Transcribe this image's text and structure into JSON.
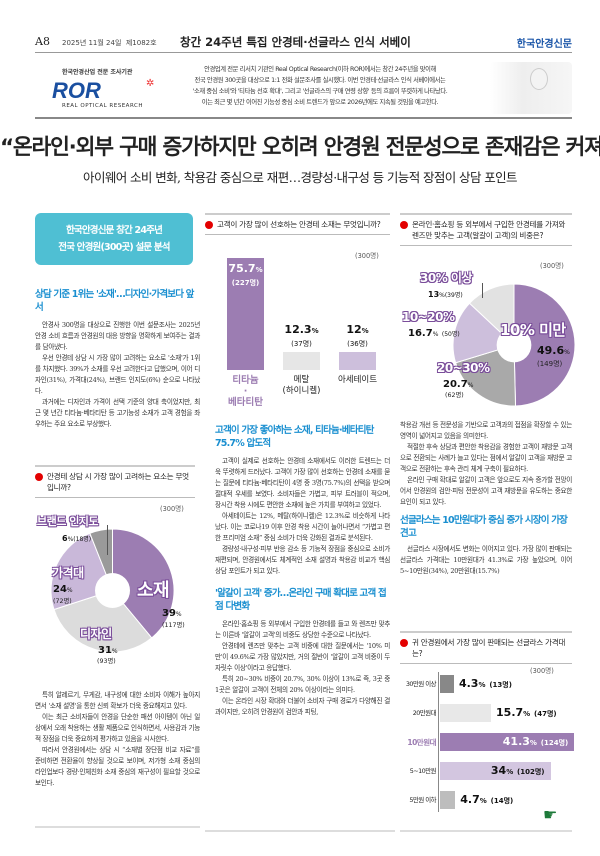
{
  "header": {
    "page": "A8",
    "date": "2025년 11월 24일",
    "issue": "제1082호",
    "section_title": "창간 24주년 특집 안경테·선글라스 인식 서베이",
    "brand": "한국안경신문"
  },
  "ror": {
    "sub": "한국안경산업 전문 조사기관",
    "logo": "ROR",
    "name": "REAL OPTICAL RESEARCH"
  },
  "intro": [
    "안경업계 전문 리서치 기관인 Real Optical Research(이하 ROR)에서는 창간 24주년을 맞이해",
    "전국 안경원 300곳을 대상으로 1:1 전화 설문조사를 실시했다. 이번 안경테·선글라스 인식 서베이에서는",
    "'소재 중심 소비'와 '티타늄 선호 확대', 그리고 '선글라스의 구매 연령 상향' 등의 흐름이 뚜렷하게 나타났다.",
    "이는 최근 몇 년간 이어진 기능성 중심 소비 트렌드가 앞으로 2026년에도 지속될 것임을 예고한다."
  ],
  "headline": "“온라인·외부 구매 증가하지만 오히려 안경원 전문성으로 존재감은 커져”",
  "subhead": "아이웨어 소비 변화, 착용감 중심으로 재편…경량성·내구성 등 기능적 장점이 상담 포인트",
  "callout": [
    "한국안경신문 창간 24주년",
    "전국 안경원(300곳) 설문 분석"
  ],
  "sections": [
    {
      "heading": "상담 기준 1위는 '소재'…디자인·가격보다 앞서",
      "paragraphs": [
        "안경사 300명을 대상으로 진행한 이번 설문조사는 2025년 안경 소비 흐름과 안경원의 대응 방향을 명확하게 보여주는 결과를 담아냈다.",
        "우선 안경테 상담 시 가장 많이 고려하는 요소로 '소재'가 1위를 차지했다. 39%가 소재를 우선 고려한다고 답했으며, 이어 디자인(31%), 가격대(24%), 브랜드 인지도(6%) 순으로 나타났다.",
        "과거에는 디자인과 가격이 선택 기준의 양대 축이었지만, 최근 몇 년간 티타늄·베타티탄 등 고기능성 소재가 고객 경험을 좌우하는 주요 요소로 부상했다."
      ]
    },
    {
      "paragraphs": [
        "특히 알레르기, 무게감, 내구성에 대한 소비자 이해가 높아지면서 '소재 설명'을 통한 신뢰 확보가 더욱 중요해지고 있다.",
        "이는 최근 소비자들이 안경을 단순한 패션 아이템이 아닌 일상에서 오래 착용하는 생활 제품으로 인식하면서, 사용감과 기능적 장점을 더욱 중요하게 평가하고 있음을 시사한다.",
        "따라서 안경원에서는 상담 시 “소재별 장단점 비교 자료”를 준비하면 전환율이 향상될 것으로 보이며, 저가형 소재 중심의 라인업보다 경량·인체친화 소재 중심의 재구성이 필요할 것으로 보인다."
      ]
    },
    {
      "heading": "고객이 가장 좋아하는 소재, 티타늄·베타티탄 75.7% 압도적",
      "paragraphs": [
        "고객이 실제로 선호하는 안경테 소재에서도 이러한 트렌드는 더욱 뚜렷하게 드러났다. 고객이 가장 많이 선호하는 안경테 소재를 묻는 질문에 티타늄·베타티탄이 4명 중 3명(75.7%)의 선택을 받으며 절대적 우세를 보였다. 소비자들은 가볍고, 피부 트러블이 적으며, 장시간 착용 시에도 편안한 소재에 높은 가치를 부여하고 있었다.",
        "아세테이트는 12%, 메탈(하이니켈)은 12.3%로 비슷하게 나타났다. 이는 코로나19 이후 안경 착용 시간이 늘어나면서 “가볍고 편한 프리미엄 소재” 중심 소비가 더욱 강화된 결과로 분석된다.",
        "경량성·내구성·피부 반응 감소 등 기능적 장점을 중심으로 소비가 재편되며, 안경원에서도 체계적인 소재 설명과 착용감 비교가 핵심 상담 포인트가 되고 있다."
      ]
    },
    {
      "heading": "'알갈이 고객' 증가…온라인 구매 확대로 고객 접점 다변화",
      "paragraphs": [
        "온라인·홈쇼핑 등 외부에서 구입한 안경테를 들고 와 렌즈만 맞추는 이른바 '알갈이 고객'의 비중도 상당한 수준으로 나타났다.",
        "안경테에 렌즈만 맞추는 고객 비중에 대한 질문에서는 '10% 미만'이 49.6%로 가장 많았지만, 거의 절반이 '알갈이 고객 비중이 두 자릿수 이상'이라고 응답했다.",
        "특히 20~30% 비중이 20.7%, 30% 이상이 13%로 즉, 3곳 중 1곳은 알갈이 고객이 전체의 20% 이상이라는 의미다.",
        "이는 온라인 시장 확대와 더불어 소비자 구매 경로가 다양해진 결과이지만, 오히려 안경원이 검안과 피팅,"
      ]
    },
    {
      "paragraphs": [
        "착용감 개선 등 전문성을 기반으로 고객과의 접점을 확장할 수 있는 영역이 넓어지고 있음을 의미한다.",
        "적절한 후속 상담과 편안한 착용감을 경험한 고객이 재방문 고객으로 전환되는 사례가 늘고 있다는 점에서 알갈이 고객을 재방문 고객으로 전환하는 후속 관리 체계 구축이 필요하다.",
        "온라인 구매 확대로 알갈이 고객은 앞으로도 지속 증가할 전망이어서 안경원의 검안·피팅 전문성이 고객 재방문을 유도하는 중요한 요인이 되고 있다."
      ]
    },
    {
      "heading": "선글라스는 10만원대가 중심 중가 시장이 가장 견고",
      "paragraphs": [
        "선글라스 시장에서도 변화는 이어지고 있다. 가장 많이 판매되는 선글라스 가격대는 10만원대가 41.3%로 가장 높았으며, 이어 5~10만원(34%), 20만원대(15.7%)"
      ]
    }
  ],
  "chart_data": [
    {
      "type": "pie",
      "title": "안경테 상담 시 가장 많이 고려하는 요소는 무엇입니까?",
      "total": "(300명)",
      "slices": [
        {
          "label": "소재",
          "pct": 39,
          "pct_text": "39",
          "n": "(117명)",
          "color": "#9c7db2"
        },
        {
          "label": "디자인",
          "pct": 31,
          "pct_text": "31",
          "n": "(93명)",
          "color": "#dcdcdc"
        },
        {
          "label": "가격대",
          "pct": 24,
          "pct_text": "24",
          "n": "(72명)",
          "color": "#c9b8d9"
        },
        {
          "label": "브랜드 인지도",
          "pct": 6,
          "pct_text": "6",
          "n": "(18명)",
          "color": "#9a9a9a"
        }
      ]
    },
    {
      "type": "bar",
      "title": "고객이 가장 많이 선호하는 안경테 소재는 무엇입니까?",
      "total": "(300명)",
      "bars": [
        {
          "label": "티타늄·베타티탄",
          "pct": 75.7,
          "pct_text": "75.7",
          "n": "(227명)",
          "color": "#9c7db2"
        },
        {
          "label": "메탈(하이니켈)",
          "pct": 12.3,
          "pct_text": "12.3",
          "n": "(37명)",
          "color": "#e6e6e6"
        },
        {
          "label": "아세테이트",
          "pct": 12,
          "pct_text": "12",
          "n": "(36명)",
          "color": "#cdbfdc"
        }
      ]
    },
    {
      "type": "pie",
      "title": "온라인·홈쇼핑 등 외부에서 구입한 안경테를 가져와 렌즈만 맞추는 고객(알갈이 고객)의 비중은?",
      "total": "(300명)",
      "slices": [
        {
          "label": "10% 미만",
          "pct": 49.6,
          "pct_text": "49.6",
          "n": "(149명)",
          "color": "#9c7db2"
        },
        {
          "label": "20~30%",
          "pct": 20.7,
          "pct_text": "20.7",
          "n": "(62명)",
          "color": "#a9a9a9"
        },
        {
          "label": "10~20%",
          "pct": 16.7,
          "pct_text": "16.7",
          "n": "(50명)",
          "color": "#cdbfdc"
        },
        {
          "label": "30% 이상",
          "pct": 13,
          "pct_text": "13",
          "n": "(39명)",
          "color": "#e2e2e2"
        }
      ]
    },
    {
      "type": "bar",
      "title": "귀 안경원에서 가장 많이 판매되는 선글라스 가격대는?",
      "total": "(300명)",
      "bars": [
        {
          "label": "30만원 이상",
          "pct": 4.3,
          "pct_text": "4.3",
          "n": "(13명)",
          "color": "#888888"
        },
        {
          "label": "20만원대",
          "pct": 15.7,
          "pct_text": "15.7",
          "n": "(47명)",
          "color": "#e8e8e8"
        },
        {
          "label": "10만원대",
          "pct": 41.3,
          "pct_text": "41.3",
          "n": "(124명)",
          "color": "#9c7db2"
        },
        {
          "label": "5~10만원",
          "pct": 34,
          "pct_text": "34",
          "n": "(102명)",
          "color": "#d3c6e0"
        },
        {
          "label": "5만원 이하",
          "pct": 4.7,
          "pct_text": "4.7",
          "n": "(14명)",
          "color": "#bdbdbd"
        }
      ]
    }
  ],
  "pct_sign": "%",
  "icons": {
    "pointer": "pointing-hand-icon",
    "bullet": "red-dot-icon"
  }
}
